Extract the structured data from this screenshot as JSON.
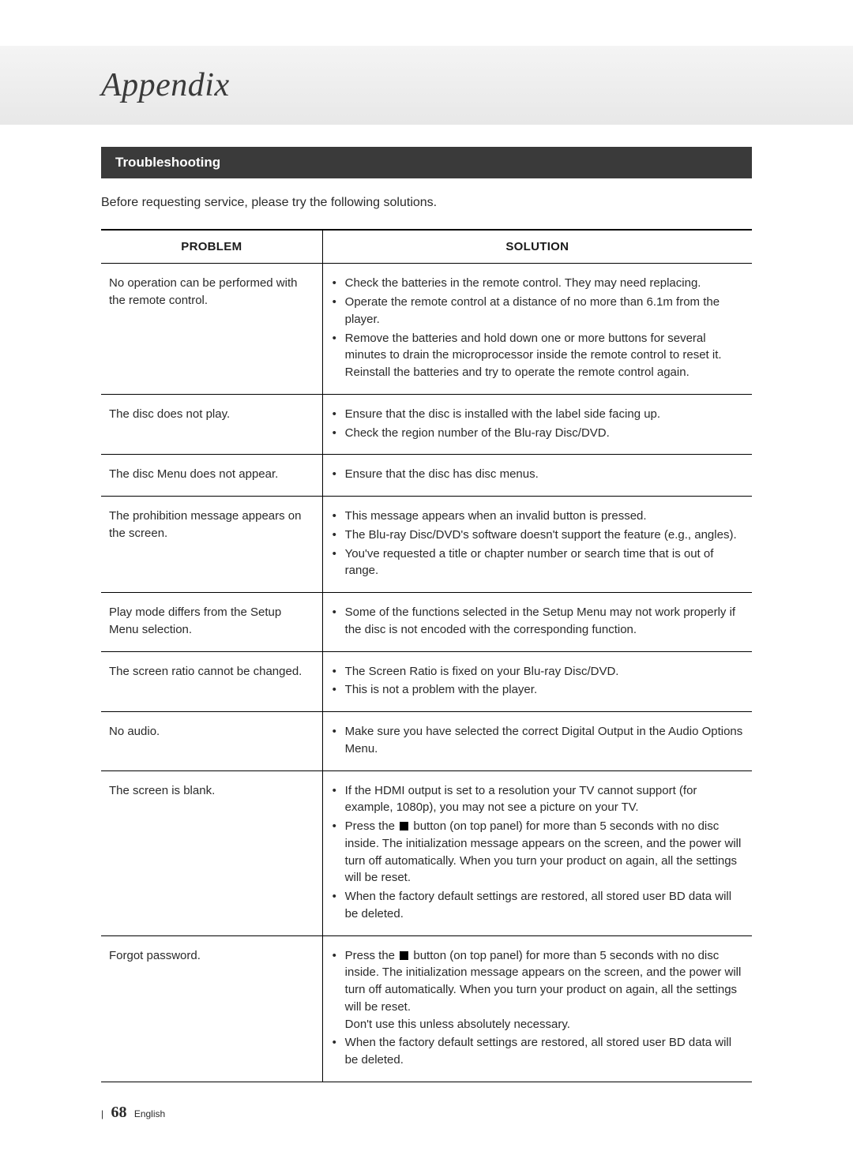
{
  "header": {
    "title": "Appendix"
  },
  "section": {
    "title": "Troubleshooting"
  },
  "intro": "Before requesting service, please try the following solutions.",
  "table": {
    "columns": {
      "problem": "PROBLEM",
      "solution": "SOLUTION"
    },
    "column_widths": [
      "34%",
      "66%"
    ],
    "border_color": "#000000",
    "header_font_weight": "bold",
    "rows": [
      {
        "problem": "No operation can be performed with the remote control.",
        "solutions": [
          "Check the batteries in the remote control. They may need replacing.",
          "Operate the remote control at a distance of no more than 6.1m from the player.",
          "Remove the batteries and hold down one or more buttons for several minutes to drain the microprocessor inside the remote control to reset it. Reinstall the batteries and try to operate the remote control again."
        ]
      },
      {
        "problem": "The disc does not play.",
        "solutions": [
          "Ensure that the disc is installed with the label side facing up.",
          "Check the region number of the Blu-ray Disc/DVD."
        ]
      },
      {
        "problem": "The disc Menu does not appear.",
        "solutions": [
          "Ensure that the disc has disc menus."
        ]
      },
      {
        "problem": "The prohibition message appears on the screen.",
        "solutions": [
          "This message appears when an invalid button is pressed.",
          "The Blu-ray Disc/DVD's software doesn't support the feature (e.g., angles).",
          "You've requested a title or chapter number or search time that is out of range."
        ]
      },
      {
        "problem": "Play mode differs from the Setup Menu selection.",
        "solutions": [
          "Some of the functions selected in the Setup Menu may not work properly if the disc is not encoded with the corresponding function."
        ]
      },
      {
        "problem": "The screen ratio cannot be changed.",
        "solutions": [
          "The Screen Ratio is fixed on your Blu-ray Disc/DVD.",
          "This is not a problem with the player."
        ]
      },
      {
        "problem": "No audio.",
        "solutions": [
          "Make sure you have selected the correct Digital Output in the Audio Options Menu."
        ]
      },
      {
        "problem": "The screen is blank.",
        "special": "blank_screen"
      },
      {
        "problem": "Forgot password.",
        "special": "forgot_password"
      }
    ],
    "special_texts": {
      "blank_screen": {
        "b1": "If the HDMI output is set to a resolution your TV cannot support (for example, 1080p), you may not see a picture on your TV.",
        "b2_pre": "Press the ",
        "b2_post": " button (on top panel) for more than 5 seconds with no disc inside. The initialization message appears on the screen, and the power will turn off automatically. When you turn your product on again, all the settings will be reset.",
        "b3": "When the factory default settings are restored, all stored user BD data will be deleted."
      },
      "forgot_password": {
        "b1_pre": "Press the ",
        "b1_post": " button (on top panel) for more than 5 seconds with no disc inside. The initialization message appears on the screen, and the power will turn off automatically. When you turn your product on again, all the settings will be reset.",
        "b1_tail": "Don't use this unless absolutely necessary.",
        "b2": "When the factory default settings are restored, all stored user BD data will be deleted."
      }
    }
  },
  "footer": {
    "divider": "|",
    "page_number": "68",
    "language": "English"
  },
  "colors": {
    "section_bar_bg": "#3a3a3a",
    "section_bar_text": "#ffffff",
    "text": "#2a2a2a",
    "header_band_start": "#f4f4f4",
    "header_band_end": "#e8e8e8"
  },
  "typography": {
    "header_title_fontsize": 42,
    "section_title_fontsize": 17,
    "body_fontsize": 15,
    "page_number_fontsize": 20
  }
}
